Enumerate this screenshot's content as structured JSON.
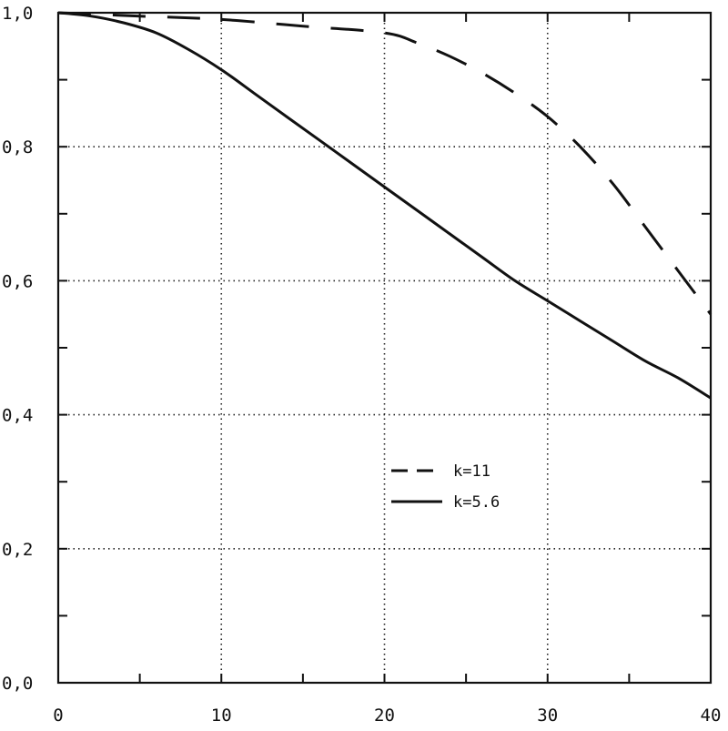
{
  "chart_data": {
    "type": "line",
    "title": "",
    "xlabel": "",
    "ylabel": "",
    "xlim": [
      0,
      40
    ],
    "ylim": [
      0,
      1
    ],
    "x_ticks": [
      0,
      10,
      20,
      30,
      40
    ],
    "x_tick_labels": [
      "0",
      "10",
      "20",
      "30",
      "40"
    ],
    "y_ticks": [
      0,
      0.2,
      0.4,
      0.6,
      0.8,
      1.0
    ],
    "y_tick_labels": [
      "0,0",
      "0,2",
      "0,4",
      "0,6",
      "0,8",
      "1,0"
    ],
    "grid": true,
    "legend_position": "center-right",
    "series": [
      {
        "name": "k=11",
        "line_style": "dashed",
        "color": "#111111",
        "x": [
          0,
          5,
          10,
          15,
          20,
          22,
          24,
          26,
          28,
          30,
          32,
          34,
          36,
          38,
          40
        ],
        "y": [
          1.0,
          0.995,
          0.99,
          0.98,
          0.97,
          0.955,
          0.935,
          0.91,
          0.88,
          0.845,
          0.8,
          0.745,
          0.68,
          0.615,
          0.55
        ]
      },
      {
        "name": "k=5.6",
        "line_style": "solid",
        "color": "#111111",
        "x": [
          0,
          2,
          4,
          6,
          8,
          10,
          12,
          14,
          16,
          18,
          20,
          22,
          24,
          26,
          28,
          30,
          32,
          34,
          36,
          38,
          40
        ],
        "y": [
          1.0,
          0.995,
          0.985,
          0.97,
          0.945,
          0.915,
          0.88,
          0.845,
          0.81,
          0.775,
          0.74,
          0.705,
          0.67,
          0.635,
          0.6,
          0.57,
          0.54,
          0.51,
          0.48,
          0.455,
          0.425
        ]
      }
    ]
  }
}
